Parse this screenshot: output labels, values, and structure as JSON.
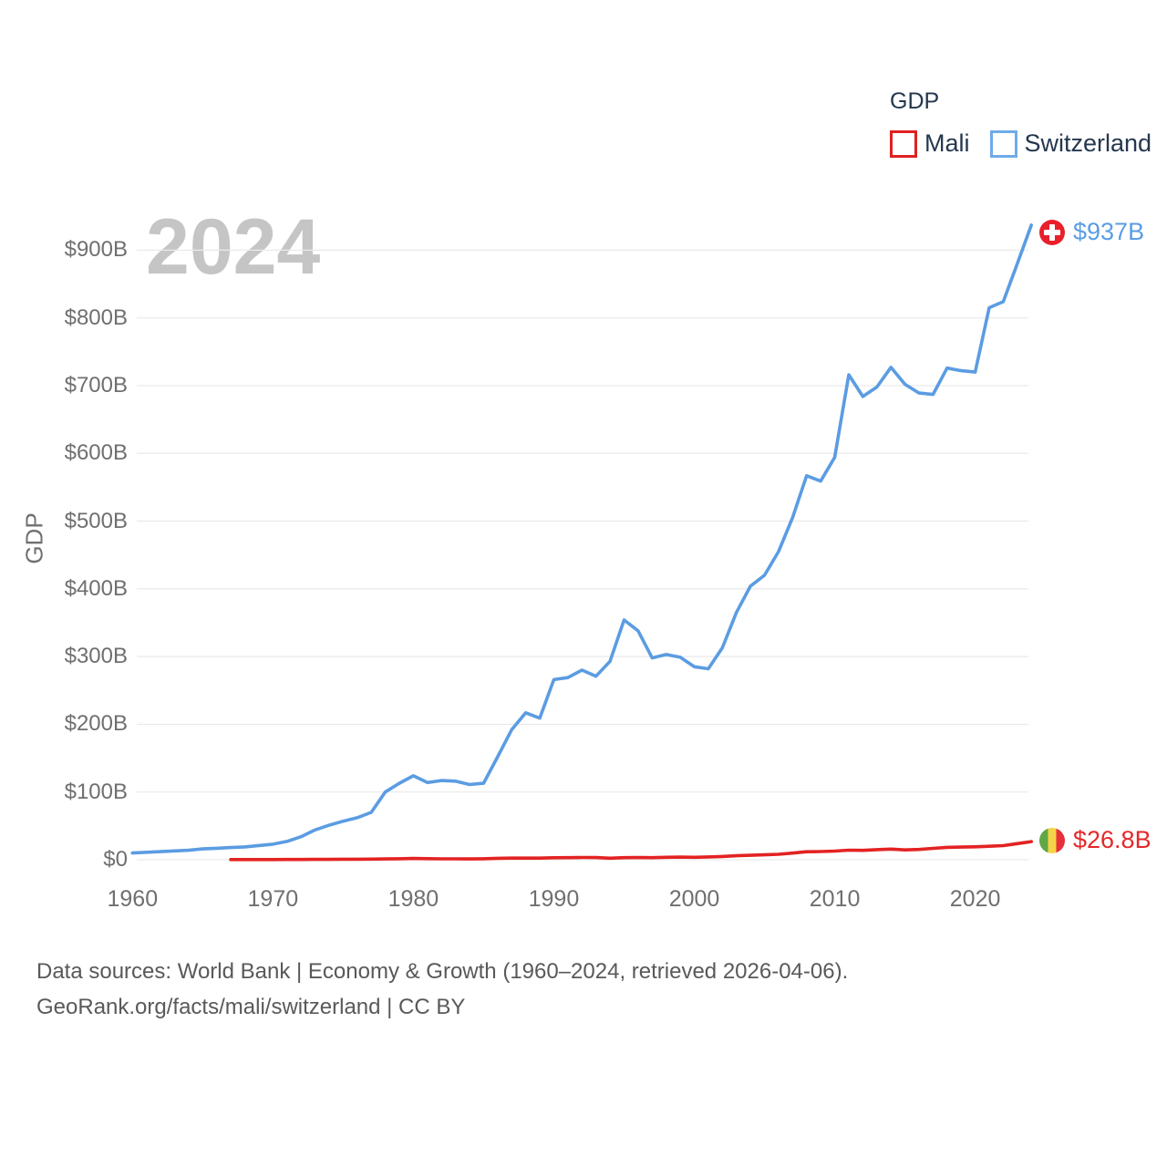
{
  "watermark": "2024",
  "legend": {
    "title": "GDP",
    "items": [
      {
        "label": "Mali",
        "color": "#e02020"
      },
      {
        "label": "Switzerland",
        "color": "#6fabe8"
      }
    ]
  },
  "axis": {
    "y_title": "GDP",
    "y_ticks": [
      {
        "label": "$0",
        "value": 0
      },
      {
        "label": "$100B",
        "value": 100
      },
      {
        "label": "$200B",
        "value": 200
      },
      {
        "label": "$300B",
        "value": 300
      },
      {
        "label": "$400B",
        "value": 400
      },
      {
        "label": "$500B",
        "value": 500
      },
      {
        "label": "$600B",
        "value": 600
      },
      {
        "label": "$700B",
        "value": 700
      },
      {
        "label": "$800B",
        "value": 800
      },
      {
        "label": "$900B",
        "value": 900
      }
    ],
    "x_ticks": [
      {
        "label": "1960",
        "value": 1960
      },
      {
        "label": "1970",
        "value": 1970
      },
      {
        "label": "1980",
        "value": 1980
      },
      {
        "label": "1990",
        "value": 1990
      },
      {
        "label": "2000",
        "value": 2000
      },
      {
        "label": "2010",
        "value": 2010
      },
      {
        "label": "2020",
        "value": 2020
      }
    ]
  },
  "end_labels": {
    "switzerland": {
      "value": "$937B",
      "flag": "switzerland-flag"
    },
    "mali": {
      "value": "$26.8B",
      "flag": "mali-flag"
    }
  },
  "footer": {
    "line1": "Data sources: World Bank | Economy & Growth (1960–2024, retrieved 2026-04-06).",
    "line2": "GeoRank.org/facts/mali/switzerland | CC BY"
  },
  "chart_data": {
    "type": "line",
    "title": "GDP",
    "xlabel": "",
    "ylabel": "GDP",
    "unit": "USD billions",
    "x_range": [
      1960,
      2024
    ],
    "ylim": [
      0,
      950
    ],
    "grid": true,
    "legend_position": "top-right",
    "series": [
      {
        "name": "Mali",
        "color": "#e42222",
        "end_label": "$26.8B",
        "x": [
          1967,
          1968,
          1969,
          1970,
          1971,
          1972,
          1973,
          1974,
          1975,
          1976,
          1977,
          1978,
          1979,
          1980,
          1981,
          1982,
          1983,
          1984,
          1985,
          1986,
          1987,
          1988,
          1989,
          1990,
          1991,
          1992,
          1993,
          1994,
          1995,
          1996,
          1997,
          1998,
          1999,
          2000,
          2001,
          2002,
          2003,
          2004,
          2005,
          2006,
          2007,
          2008,
          2009,
          2010,
          2011,
          2012,
          2013,
          2014,
          2015,
          2016,
          2017,
          2018,
          2019,
          2020,
          2021,
          2022,
          2023,
          2024
        ],
        "values": [
          0.27,
          0.28,
          0.29,
          0.33,
          0.36,
          0.41,
          0.5,
          0.54,
          0.81,
          0.84,
          0.95,
          1.16,
          1.45,
          1.9,
          1.6,
          1.4,
          1.3,
          1.2,
          1.5,
          2.1,
          2.4,
          2.4,
          2.4,
          3.0,
          3.1,
          3.4,
          3.2,
          2.3,
          3.1,
          3.2,
          3.1,
          3.6,
          3.9,
          3.7,
          4.2,
          4.8,
          5.9,
          6.6,
          7.3,
          8.1,
          9.8,
          11.9,
          12.1,
          12.8,
          14.2,
          13.9,
          14.9,
          15.7,
          14.5,
          15.2,
          16.8,
          18.3,
          18.7,
          19.1,
          19.9,
          20.9,
          23.8,
          26.8
        ]
      },
      {
        "name": "Switzerland",
        "color": "#5b9ce2",
        "end_label": "$937B",
        "x": [
          1960,
          1961,
          1962,
          1963,
          1964,
          1965,
          1966,
          1967,
          1968,
          1969,
          1970,
          1971,
          1972,
          1973,
          1974,
          1975,
          1976,
          1977,
          1978,
          1979,
          1980,
          1981,
          1982,
          1983,
          1984,
          1985,
          1986,
          1987,
          1988,
          1989,
          1990,
          1991,
          1992,
          1993,
          1994,
          1995,
          1996,
          1997,
          1998,
          1999,
          2000,
          2001,
          2002,
          2003,
          2004,
          2005,
          2006,
          2007,
          2008,
          2009,
          2010,
          2011,
          2012,
          2013,
          2014,
          2015,
          2016,
          2017,
          2018,
          2019,
          2020,
          2021,
          2022,
          2023,
          2024
        ],
        "values": [
          10,
          11,
          12,
          13,
          14,
          16,
          17,
          18,
          19,
          21,
          23,
          27,
          34,
          44,
          51,
          57,
          62,
          70,
          100,
          113,
          124,
          114,
          117,
          116,
          111,
          113,
          152,
          192,
          217,
          209,
          266,
          269,
          280,
          271,
          293,
          354,
          338,
          298,
          303,
          299,
          285,
          282,
          313,
          365,
          404,
          420,
          455,
          505,
          567,
          559,
          594,
          716,
          684,
          698,
          727,
          702,
          689,
          687,
          726,
          722,
          720,
          815,
          824,
          880,
          937
        ]
      }
    ]
  }
}
